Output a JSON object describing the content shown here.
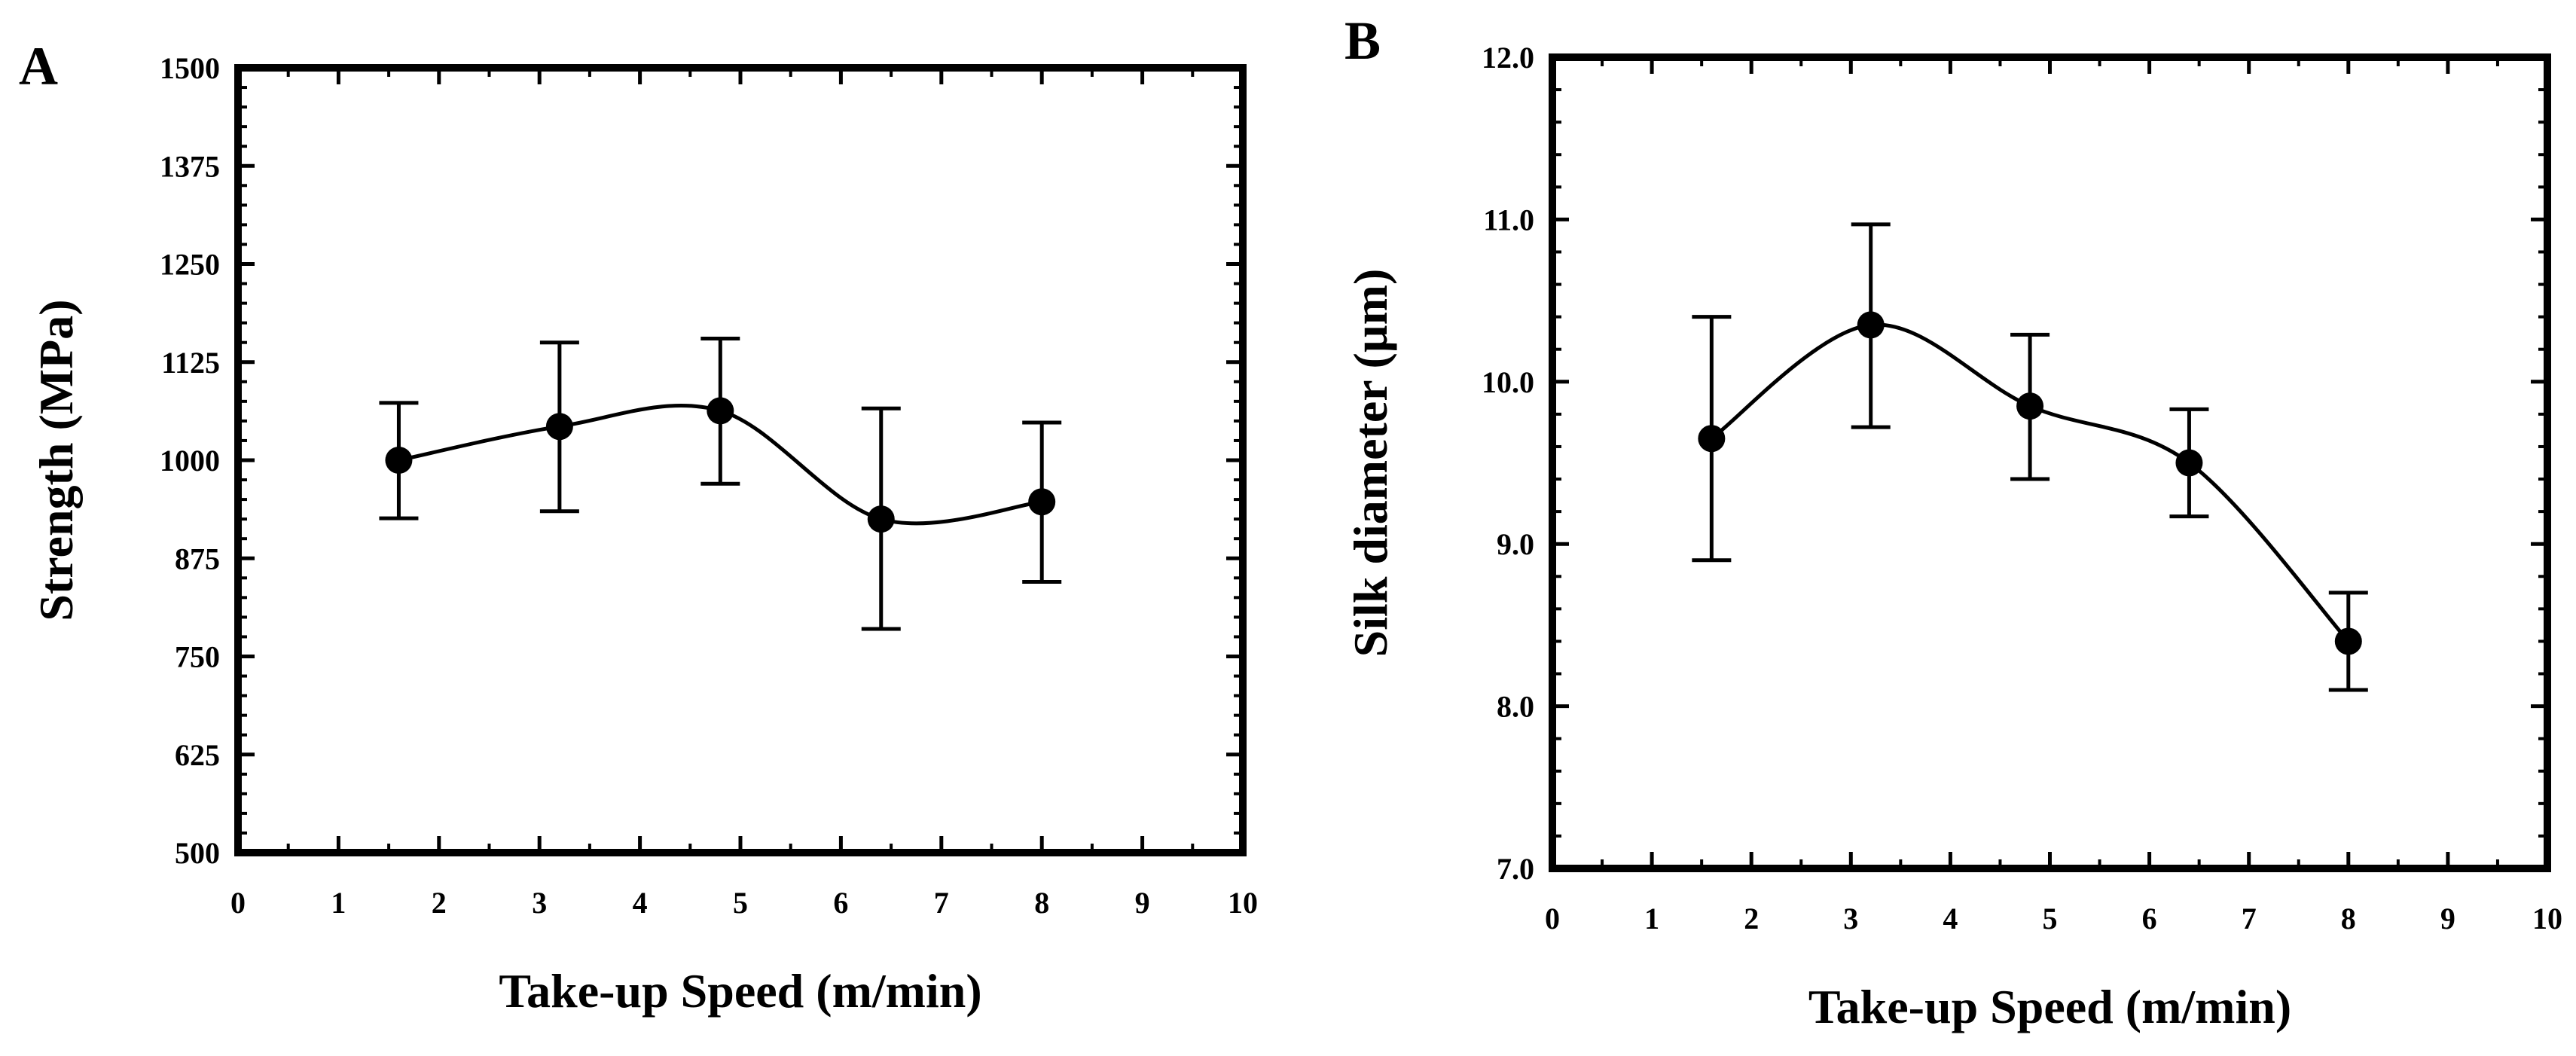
{
  "chart_data": [
    {
      "panel_label": "A",
      "type": "line",
      "xlabel": "Take-up Speed (m/min)",
      "ylabel": "Strength (MPa)",
      "xlim": [
        0,
        10
      ],
      "ylim": [
        500,
        1500
      ],
      "x_ticks": [
        "0",
        "1",
        "2",
        "3",
        "4",
        "5",
        "6",
        "7",
        "8",
        "9",
        "10"
      ],
      "y_ticks": [
        "500",
        "625",
        "750",
        "875",
        "1000",
        "1125",
        "1250",
        "1375",
        "1500"
      ],
      "series": [
        {
          "name": "Strength",
          "x": [
            1.6,
            3.2,
            4.8,
            6.4,
            8.0
          ],
          "y": [
            1000,
            1043,
            1063,
            925,
            947
          ],
          "err_low": [
            926,
            935,
            970,
            785,
            845
          ],
          "err_high": [
            1073,
            1150,
            1155,
            1066,
            1048
          ]
        }
      ]
    },
    {
      "panel_label": "B",
      "type": "line",
      "xlabel": "Take-up Speed (m/min)",
      "ylabel": "Silk diameter (µm)",
      "xlim": [
        0,
        10
      ],
      "ylim": [
        7.0,
        12.0
      ],
      "x_ticks": [
        "0",
        "1",
        "2",
        "3",
        "4",
        "5",
        "6",
        "7",
        "8",
        "9",
        "10"
      ],
      "y_ticks": [
        "7.0",
        "8.0",
        "9.0",
        "10.0",
        "11.0",
        "12.0"
      ],
      "series": [
        {
          "name": "Silk diameter",
          "x": [
            1.6,
            3.2,
            4.8,
            6.4,
            8.0
          ],
          "y": [
            9.65,
            10.35,
            9.85,
            9.5,
            8.4
          ],
          "err_low": [
            8.9,
            9.72,
            9.4,
            9.17,
            8.1
          ],
          "err_high": [
            10.4,
            10.97,
            10.29,
            9.83,
            8.7
          ]
        }
      ]
    }
  ]
}
